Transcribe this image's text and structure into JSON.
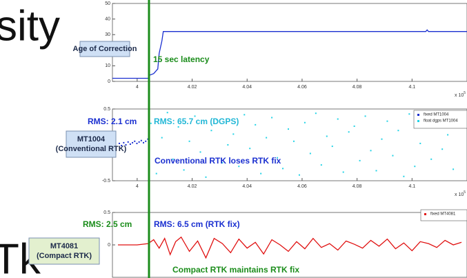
{
  "slide": {
    "text_top": "sity",
    "text_bottom": "Tk"
  },
  "latency_marker_x": 4.0043,
  "chart_data": [
    {
      "type": "line",
      "label_box": [
        "Age of Correction"
      ],
      "annotations": [
        "15 sec latency"
      ],
      "xlim": [
        3.991,
        4.12
      ],
      "xticks": [
        4,
        4.02,
        4.04,
        4.06,
        4.08,
        4.1
      ],
      "x_multiplier": "x 10",
      "x_multiplier_exp": "5",
      "ylim": [
        0,
        50
      ],
      "yticks": [
        0,
        10,
        20,
        30,
        40,
        50
      ],
      "series": [
        {
          "color": "#1a2fd0",
          "x": [
            3.991,
            4.004,
            4.0045,
            4.006,
            4.0075,
            4.008,
            4.009,
            4.0095,
            4.105,
            4.1055,
            4.106,
            4.12
          ],
          "values": [
            2,
            2,
            4,
            5,
            8,
            18,
            26,
            32,
            32,
            33,
            32,
            32
          ]
        }
      ]
    },
    {
      "type": "scatter",
      "label_box": [
        "MT1004",
        "(Conventional RTK)"
      ],
      "annotations": [
        "RMS: 2.1 cm",
        "RMS: 65.7 cm (DGPS)",
        "Conventional RTK loses RTK fix"
      ],
      "xlim": [
        3.991,
        4.12
      ],
      "xticks": [
        4,
        4.02,
        4.04,
        4.06,
        4.08,
        4.1
      ],
      "x_multiplier": "x 10",
      "x_multiplier_exp": "5",
      "ylim": [
        -0.5,
        0.5
      ],
      "yticks": [
        -0.5,
        0,
        0.5
      ],
      "series": [
        {
          "name": "fixed MT1004",
          "color": "#1a2fd0",
          "x": [
            3.9935,
            3.9943,
            3.9951,
            3.9959,
            3.9967,
            3.9975,
            3.9983,
            3.9991,
            3.9999,
            4.0007,
            4.0015,
            4.0023,
            4.0031,
            4.0039
          ],
          "values": [
            0.02,
            -0.01,
            0.03,
            0.0,
            0.04,
            0.01,
            0.03,
            0.05,
            0.02,
            0.04,
            0.06,
            0.03,
            0.05,
            0.08
          ]
        },
        {
          "name": "float dgps MT1004",
          "color": "#22d3e6",
          "x": [
            4.005,
            4.007,
            4.009,
            4.011,
            4.013,
            4.015,
            4.017,
            4.019,
            4.021,
            4.023,
            4.025,
            4.027,
            4.029,
            4.031,
            4.033,
            4.035,
            4.037,
            4.039,
            4.041,
            4.043,
            4.045,
            4.047,
            4.049,
            4.051,
            4.053,
            4.055,
            4.057,
            4.059,
            4.061,
            4.063,
            4.065,
            4.067,
            4.069,
            4.071,
            4.073,
            4.075,
            4.077,
            4.079,
            4.081,
            4.083,
            4.085,
            4.087,
            4.089,
            4.091,
            4.093,
            4.095,
            4.097,
            4.099,
            4.101,
            4.103,
            4.105,
            4.107,
            4.109,
            4.111,
            4.113,
            4.115,
            4.117
          ],
          "values": [
            0.3,
            -0.4,
            0.1,
            0.45,
            -0.2,
            0.25,
            -0.35,
            0.05,
            0.4,
            -0.1,
            -0.45,
            0.2,
            0.35,
            -0.25,
            0.0,
            0.15,
            -0.3,
            0.42,
            -0.05,
            0.28,
            -0.4,
            0.1,
            0.38,
            -0.18,
            -0.33,
            0.22,
            0.05,
            -0.42,
            0.31,
            -0.12,
            0.44,
            -0.28,
            0.12,
            -0.02,
            0.36,
            -0.38,
            0.18,
            0.26,
            -0.22,
            0.4,
            -0.08,
            -0.36,
            0.08,
            0.33,
            -0.15,
            0.2,
            -0.44,
            0.43,
            -0.3,
            0.02,
            0.24,
            -0.2,
            0.37,
            -0.06,
            0.14,
            -0.34,
            0.29
          ]
        }
      ]
    },
    {
      "type": "line",
      "label_box": [
        "MT4081",
        "(Compact RTK)"
      ],
      "annotations": [
        "RMS: 2.5 cm",
        "RMS: 6.5 cm (RTK fix)",
        "Compact RTK maintains RTK fix"
      ],
      "xlim": [
        3.991,
        4.12
      ],
      "ylim": [
        -0.5,
        0.5
      ],
      "yticks": [
        0,
        0.5
      ],
      "series": [
        {
          "name": "fixed MT4081",
          "color": "#e01010",
          "x": [
            3.993,
            4.0,
            4.004,
            4.006,
            4.008,
            4.01,
            4.012,
            4.014,
            4.016,
            4.019,
            4.022,
            4.025,
            4.028,
            4.031,
            4.034,
            4.037,
            4.04,
            4.043,
            4.046,
            4.049,
            4.052,
            4.055,
            4.058,
            4.061,
            4.064,
            4.067,
            4.07,
            4.073,
            4.076,
            4.079,
            4.082,
            4.085,
            4.088,
            4.091,
            4.094,
            4.097,
            4.1,
            4.103,
            4.106,
            4.109,
            4.112,
            4.115,
            4.118
          ],
          "values": [
            0.0,
            0.0,
            0.02,
            0.08,
            -0.05,
            0.1,
            -0.15,
            0.05,
            0.12,
            -0.1,
            0.06,
            -0.2,
            0.1,
            0.02,
            -0.12,
            0.09,
            -0.05,
            0.04,
            -0.14,
            0.08,
            0.0,
            -0.1,
            0.05,
            -0.06,
            0.1,
            -0.04,
            0.02,
            -0.08,
            0.06,
            0.01,
            -0.05,
            0.07,
            -0.02,
            0.09,
            -0.06,
            0.03,
            -0.09,
            0.05,
            0.02,
            -0.04,
            0.07,
            0.0,
            0.04
          ]
        }
      ]
    }
  ]
}
